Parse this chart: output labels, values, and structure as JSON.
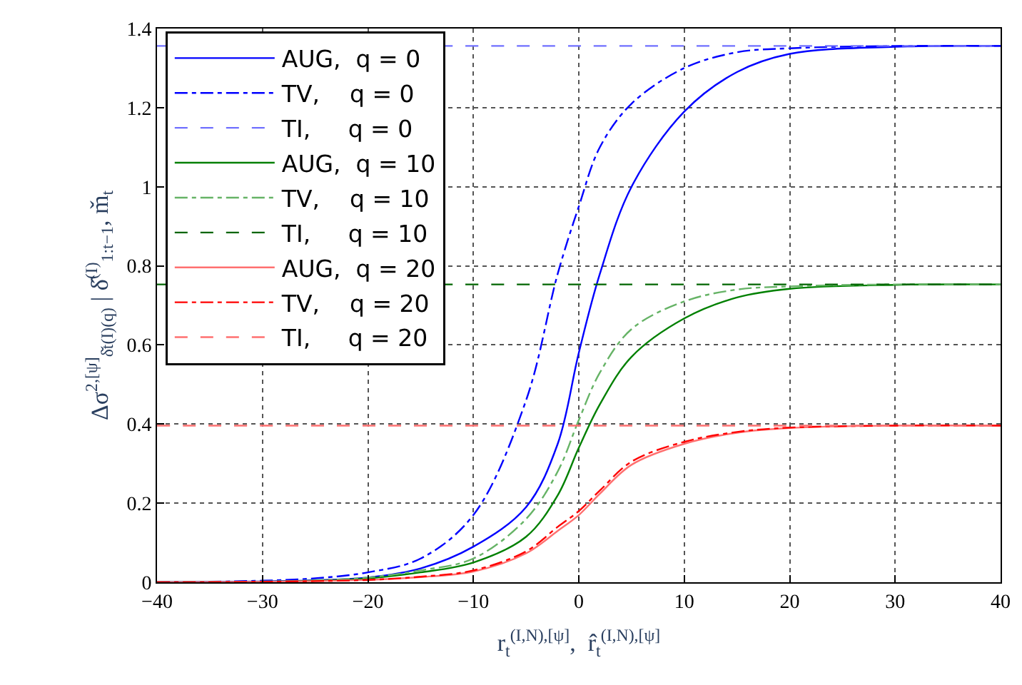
{
  "chart_data": {
    "type": "line",
    "xlabel": "r$_{t}$$^{(I,N),[ψ]}$,  r̂$_{t}$$^{(I,N),[ψ]}$",
    "ylabel": "Δσ$^{2,[ψ]}$$_{δ̌t(I)(q)}$ | δ̂$^{(I)}$$_{1:t−1}$, m̌$_{t}$",
    "x": [
      -40,
      -30,
      -25,
      -20,
      -15,
      -10,
      -5,
      -2,
      0,
      2,
      5,
      10,
      15,
      20,
      30,
      40
    ],
    "series": [
      {
        "name": "AUG,  q = 0",
        "color": "#0000ff",
        "line_style": "solid",
        "values": [
          0,
          0.002,
          0.005,
          0.012,
          0.035,
          0.09,
          0.19,
          0.35,
          0.58,
          0.78,
          1.0,
          1.19,
          1.29,
          1.336,
          1.354,
          1.356
        ]
      },
      {
        "name": "TV,    q = 0",
        "color": "#0000ff",
        "line_style": "dashdot",
        "values": [
          0,
          0.004,
          0.01,
          0.025,
          0.06,
          0.17,
          0.46,
          0.78,
          0.95,
          1.1,
          1.21,
          1.3,
          1.34,
          1.35,
          1.356,
          1.356
        ]
      },
      {
        "name": "TI,     q = 0",
        "color": "#7070ff",
        "line_style": "dashed",
        "values": [
          1.356,
          null,
          null,
          null,
          null,
          null,
          1.356,
          1.356,
          1.356,
          1.356,
          1.356,
          1.356,
          1.356,
          1.356,
          1.356,
          1.356
        ]
      },
      {
        "name": "AUG,  q = 10",
        "color": "#008000",
        "line_style": "solid",
        "values": [
          0,
          0.001,
          0.004,
          0.01,
          0.025,
          0.05,
          0.115,
          0.22,
          0.34,
          0.45,
          0.57,
          0.667,
          0.72,
          0.742,
          0.752,
          0.753
        ]
      },
      {
        "name": "TV,    q = 10",
        "color": "#66b366",
        "line_style": "dashdot",
        "values": [
          0,
          0.002,
          0.005,
          0.012,
          0.03,
          0.06,
          0.16,
          0.28,
          0.41,
          0.53,
          0.64,
          0.71,
          0.74,
          0.748,
          0.753,
          0.753
        ]
      },
      {
        "name": "TI,     q = 10",
        "color": "#006400",
        "line_style": "dashed",
        "values": [
          0.753,
          null,
          null,
          null,
          null,
          null,
          0.753,
          0.753,
          0.753,
          0.753,
          0.753,
          0.753,
          0.753,
          0.753,
          0.753,
          0.753
        ]
      },
      {
        "name": "AUG,  q = 20",
        "color": "#ff7070",
        "line_style": "solid",
        "values": [
          0,
          0.001,
          0.003,
          0.006,
          0.013,
          0.027,
          0.073,
          0.13,
          0.17,
          0.224,
          0.297,
          0.35,
          0.378,
          0.39,
          0.396,
          0.396
        ]
      },
      {
        "name": "TV,    q = 20",
        "color": "#ff0000",
        "line_style": "dashdot",
        "values": [
          0,
          0.001,
          0.003,
          0.006,
          0.014,
          0.03,
          0.078,
          0.14,
          0.18,
          0.232,
          0.305,
          0.355,
          0.38,
          0.391,
          0.396,
          0.396
        ]
      },
      {
        "name": "TI,     q = 20",
        "color": "#ff7070",
        "line_style": "dashed",
        "values": [
          0.396,
          0.396,
          0.396,
          0.396,
          0.396,
          0.396,
          0.396,
          0.396,
          0.396,
          0.396,
          0.396,
          0.396,
          0.396,
          0.396,
          0.396,
          0.396
        ]
      }
    ],
    "xlim": [
      -40,
      40
    ],
    "xticks": [
      -40,
      -30,
      -20,
      -10,
      0,
      10,
      20,
      30,
      40
    ],
    "ylim": [
      0,
      1.4
    ],
    "yticks": [
      0,
      0.2,
      0.4,
      0.6,
      0.8,
      1,
      1.2,
      1.4
    ],
    "grid": true,
    "legend": "top left"
  }
}
